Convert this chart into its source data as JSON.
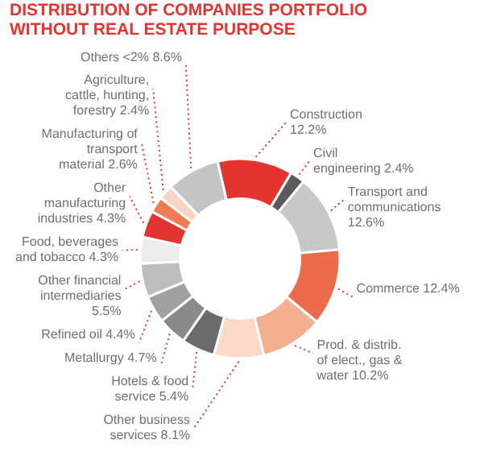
{
  "chart_data": {
    "type": "donut",
    "title": "DISTRIBUTION OF COMPANIES PORTFOLIO WITHOUT REAL ESTATE PURPOSE",
    "categories": [
      "Construction",
      "Civil engineering",
      "Transport and communications",
      "Commerce",
      "Prod. & distrib. of elect., gas & water",
      "Other business services",
      "Hotels & food service",
      "Metallurgy",
      "Refined oil",
      "Other financial intermediaries",
      "Food, beverages and tobacco",
      "Other manufacturing industries",
      "Manufacturing of transport material",
      "Agriculture, cattle, hunting, forestry",
      "Others <2%"
    ],
    "values": [
      12.2,
      2.4,
      12.6,
      12.4,
      10.2,
      8.1,
      5.4,
      4.7,
      4.4,
      5.5,
      4.3,
      4.3,
      2.6,
      2.4,
      8.6
    ],
    "value_labels": [
      "12.2%",
      "2.4%",
      "12.6%",
      "12.4%",
      "10.2%",
      "8.1%",
      "5.4%",
      "4.7%",
      "4.4%",
      "5.5%",
      "4.3%",
      "4.3%",
      "2.6%",
      "2.4%",
      "8.6%"
    ],
    "colors": [
      "#e3342f",
      "#5a5a5a",
      "#c8c8c8",
      "#ec6b4a",
      "#f4ae90",
      "#fbd9c8",
      "#6b6b6b",
      "#8a8a8a",
      "#a0a0a0",
      "#bdbdbd",
      "#ececec",
      "#e3342f",
      "#ef7b55",
      "#f9d3c6",
      "#c4c4c4"
    ]
  }
}
